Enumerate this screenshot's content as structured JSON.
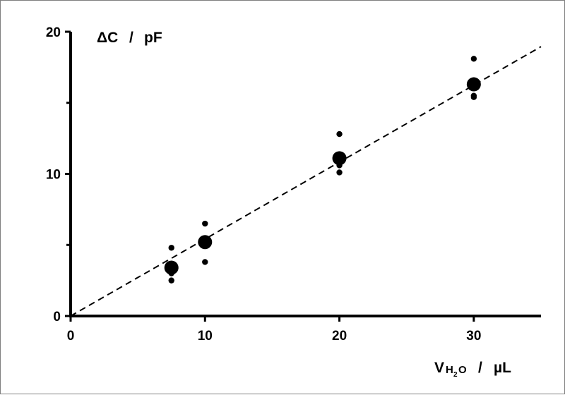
{
  "chart_data": {
    "type": "scatter",
    "x_range": [
      0,
      35
    ],
    "y_range": [
      0,
      20
    ],
    "x_ticks": [
      {
        "value": 0,
        "label": "0"
      },
      {
        "value": 10,
        "label": "10"
      },
      {
        "value": 20,
        "label": "20"
      },
      {
        "value": 30,
        "label": "30"
      }
    ],
    "y_ticks": [
      {
        "value": 0,
        "label": "0"
      },
      {
        "value": 10,
        "label": "10"
      },
      {
        "value": 20,
        "label": "20"
      }
    ],
    "y_minor_ticks": [
      5,
      15
    ],
    "ylabel": {
      "main": "ΔC",
      "sep": "/",
      "unit": "pF"
    },
    "xlabel": {
      "main": "V",
      "sub1": "H",
      "sub2": "2",
      "sub3": "O",
      "sep": "/",
      "unit": "µL"
    },
    "series": [
      {
        "kind": "individual",
        "x": [
          7.5,
          7.5,
          7.5,
          7.5,
          10,
          10,
          20,
          20,
          20,
          30,
          30,
          30
        ],
        "y": [
          4.8,
          3.0,
          2.5,
          3.6,
          6.5,
          3.8,
          12.8,
          10.6,
          10.1,
          18.1,
          15.5,
          15.4
        ]
      },
      {
        "kind": "mean",
        "x": [
          7.5,
          10,
          20,
          30
        ],
        "y": [
          3.4,
          5.2,
          11.1,
          16.3
        ]
      }
    ],
    "fit_line": {
      "x": [
        0,
        35
      ],
      "y": [
        0,
        18.95
      ],
      "style": "dashed"
    },
    "grid": false,
    "legend": "none"
  }
}
